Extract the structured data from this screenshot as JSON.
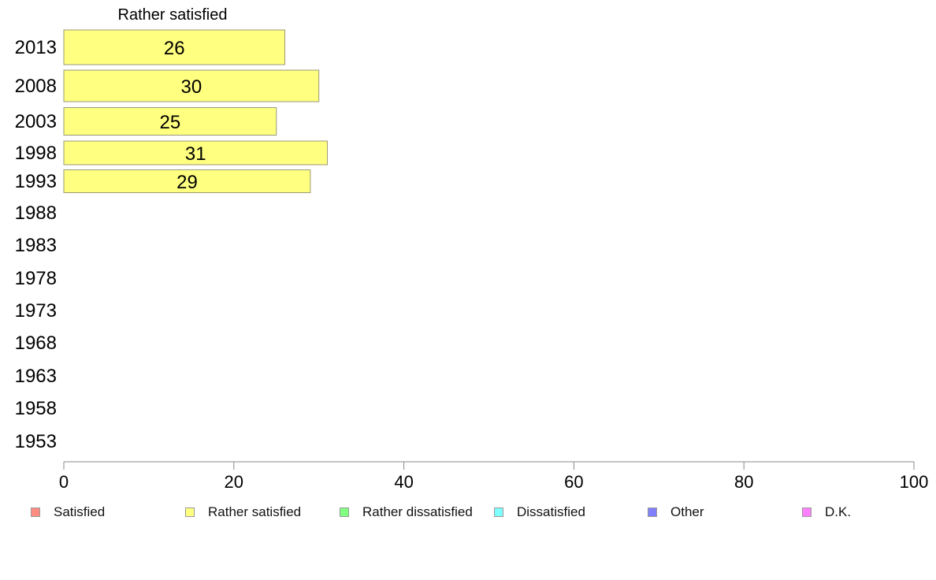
{
  "chart_data": {
    "type": "bar",
    "orientation": "horizontal",
    "title": "Rather satisfied",
    "categories": [
      "2013",
      "2008",
      "2003",
      "1998",
      "1993",
      "1988",
      "1983",
      "1978",
      "1973",
      "1968",
      "1963",
      "1958",
      "1953"
    ],
    "series": [
      {
        "name": "Rather satisfied",
        "color": "#ffff80",
        "values": [
          26,
          30,
          25,
          31,
          29,
          null,
          null,
          null,
          null,
          null,
          null,
          null,
          null
        ]
      }
    ],
    "xlim": [
      0,
      100
    ],
    "xticks": [
      "0",
      "20",
      "40",
      "60",
      "80",
      "100"
    ],
    "grid": false,
    "legend_position": "bottom",
    "legend": [
      {
        "label": "Satisfied",
        "color": "#ff8c80"
      },
      {
        "label": "Rather satisfied",
        "color": "#ffff80"
      },
      {
        "label": "Rather dissatisfied",
        "color": "#80ff80"
      },
      {
        "label": "Dissatisfied",
        "color": "#80ffff"
      },
      {
        "label": "Other",
        "color": "#8080ff"
      },
      {
        "label": "D.K.",
        "color": "#ff80ff"
      }
    ]
  }
}
